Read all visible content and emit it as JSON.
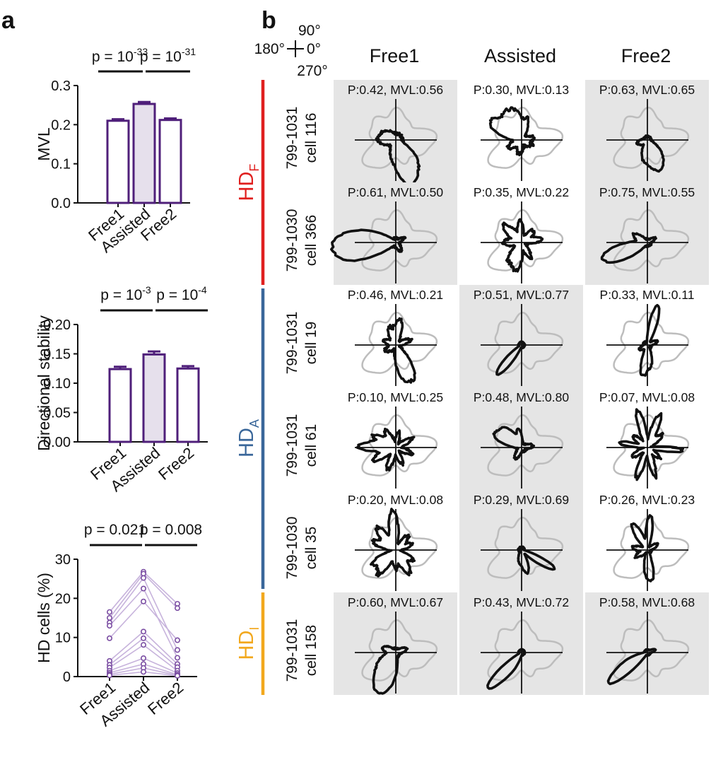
{
  "panel_a": {
    "label": "a",
    "charts": [
      {
        "type": "bar",
        "categories": [
          "Free1",
          "Assisted",
          "Free2"
        ],
        "values": [
          0.21,
          0.253,
          0.212
        ],
        "errors": [
          0.004,
          0.005,
          0.004
        ],
        "ylabel": "MVL",
        "ylim": [
          0,
          0.3
        ],
        "yticks": [
          0.0,
          0.1,
          0.2,
          0.3
        ],
        "ytick_labels": [
          "0.0",
          "0.1",
          "0.2",
          "0.3"
        ],
        "comparisons": [
          {
            "pair": "Free1-Assisted",
            "label_prefix": "p = 10",
            "exponent": "-33"
          },
          {
            "pair": "Assisted-Free2",
            "label_prefix": "p = 10",
            "exponent": "-31"
          }
        ],
        "colors": {
          "bar_stroke": "#4f1f7a",
          "highlight_fill": "#e6e0ec"
        }
      },
      {
        "type": "bar",
        "categories": [
          "Free1",
          "Assisted",
          "Free2"
        ],
        "values": [
          0.124,
          0.149,
          0.125
        ],
        "errors": [
          0.004,
          0.005,
          0.004
        ],
        "ylabel": "Directional stability",
        "ylim": [
          0,
          0.2
        ],
        "yticks": [
          0.0,
          0.05,
          0.1,
          0.15,
          0.2
        ],
        "ytick_labels": [
          "0.00",
          "0.05",
          "0.10",
          "0.15",
          "0.20"
        ],
        "comparisons": [
          {
            "pair": "Free1-Assisted",
            "label_prefix": "p = 10",
            "exponent": "-3"
          },
          {
            "pair": "Assisted-Free2",
            "label_prefix": "p = 10",
            "exponent": "-4"
          }
        ],
        "colors": {
          "bar_stroke": "#4f1f7a",
          "highlight_fill": "#e6e0ec"
        }
      },
      {
        "type": "line",
        "categories": [
          "Free1",
          "Assisted",
          "Free2"
        ],
        "ylabel": "HD cells (%)",
        "ylim": [
          0,
          30
        ],
        "yticks": [
          0,
          10,
          20,
          30
        ],
        "ytick_labels": [
          "0",
          "10",
          "20",
          "30"
        ],
        "series": [
          {
            "name": "s1",
            "values": [
              16.5,
              26.8,
              18.6
            ]
          },
          {
            "name": "s2",
            "values": [
              15.0,
              26.3,
              17.5
            ]
          },
          {
            "name": "s3",
            "values": [
              13.8,
              25.2,
              6.8
            ]
          },
          {
            "name": "s4",
            "values": [
              13.0,
              22.5,
              4.8
            ]
          },
          {
            "name": "s5",
            "values": [
              9.8,
              19.2,
              9.3
            ]
          },
          {
            "name": "s6",
            "values": [
              4.0,
              11.5,
              3.2
            ]
          },
          {
            "name": "s7",
            "values": [
              3.0,
              9.8,
              2.4
            ]
          },
          {
            "name": "s8",
            "values": [
              2.3,
              8.1,
              1.5
            ]
          },
          {
            "name": "s9",
            "values": [
              1.5,
              4.7,
              0.9
            ]
          },
          {
            "name": "s10",
            "values": [
              1.0,
              3.2,
              0.5
            ]
          },
          {
            "name": "s11",
            "values": [
              0.6,
              2.2,
              0.3
            ]
          },
          {
            "name": "s12",
            "values": [
              0.3,
              1.2,
              0.2
            ]
          }
        ],
        "comparisons": [
          {
            "pair": "Free1-Assisted",
            "label": "p = 0.021"
          },
          {
            "pair": "Assisted-Free2",
            "label": "p = 0.008"
          }
        ],
        "colors": {
          "line": "#c7b3dc",
          "marker": "#7b4ea3"
        }
      }
    ]
  },
  "panel_b": {
    "label": "b",
    "compass": {
      "top": "90°",
      "left": "180°",
      "right": "0°",
      "bottom": "270°"
    },
    "columns": [
      "Free1",
      "Assisted",
      "Free2"
    ],
    "groups": [
      {
        "name": "HD",
        "subscript": "F",
        "color": "#e0201f"
      },
      {
        "name": "HD",
        "subscript": "A",
        "color": "#3a679a"
      },
      {
        "name": "HD",
        "subscript": "I",
        "color": "#f2a81d"
      }
    ],
    "rows": [
      {
        "group": 0,
        "session": "799-1031",
        "cell": "cell 116",
        "cells": [
          {
            "label": "P:0.42, MVL:0.56",
            "shaded": true
          },
          {
            "label": "P:0.30, MVL:0.13",
            "shaded": false
          },
          {
            "label": "P:0.63, MVL:0.65",
            "shaded": true
          }
        ]
      },
      {
        "group": 0,
        "session": "799-1030",
        "cell": "cell 366",
        "cells": [
          {
            "label": "P:0.61, MVL:0.50",
            "shaded": true
          },
          {
            "label": "P:0.35, MVL:0.22",
            "shaded": false
          },
          {
            "label": "P:0.75, MVL:0.55",
            "shaded": true
          }
        ]
      },
      {
        "group": 1,
        "session": "799-1031",
        "cell": "cell 19",
        "cells": [
          {
            "label": "P:0.46, MVL:0.21",
            "shaded": false
          },
          {
            "label": "P:0.51, MVL:0.77",
            "shaded": true
          },
          {
            "label": "P:0.33, MVL:0.11",
            "shaded": false
          }
        ]
      },
      {
        "group": 1,
        "session": "799-1031",
        "cell": "cell 61",
        "cells": [
          {
            "label": "P:0.10, MVL:0.25",
            "shaded": false
          },
          {
            "label": "P:0.48, MVL:0.80",
            "shaded": true
          },
          {
            "label": "P:0.07, MVL:0.08",
            "shaded": false
          }
        ]
      },
      {
        "group": 1,
        "session": "799-1030",
        "cell": "cell 35",
        "cells": [
          {
            "label": "P:0.20, MVL:0.08",
            "shaded": false
          },
          {
            "label": "P:0.29, MVL:0.69",
            "shaded": true
          },
          {
            "label": "P:0.26, MVL:0.23",
            "shaded": false
          }
        ]
      },
      {
        "group": 2,
        "session": "799-1031",
        "cell": "cell 158",
        "cells": [
          {
            "label": "P:0.60, MVL:0.67",
            "shaded": true
          },
          {
            "label": "P:0.43, MVL:0.72",
            "shaded": true
          },
          {
            "label": "P:0.58, MVL:0.68",
            "shaded": true
          }
        ]
      }
    ],
    "colors": {
      "shade": "#e5e5e5",
      "tuning": "#111111",
      "reference": "#bdbdbd"
    }
  }
}
